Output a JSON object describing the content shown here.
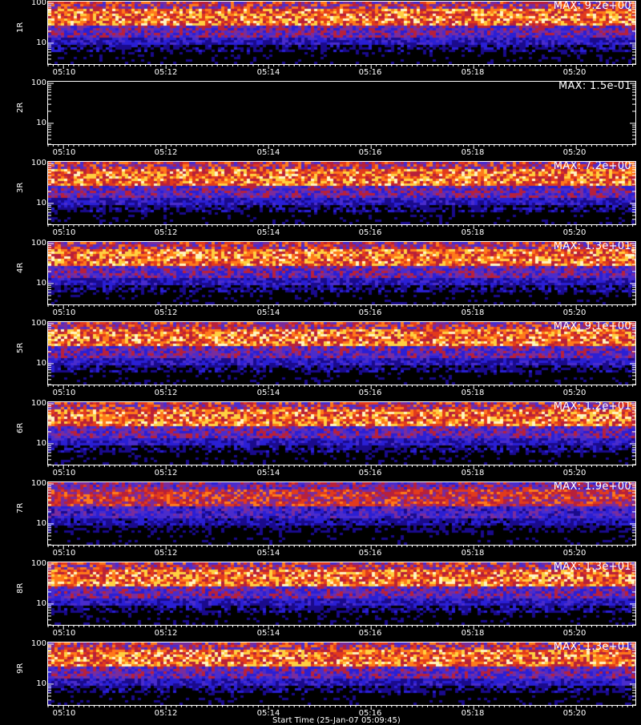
{
  "chart_data": [
    {
      "type": "heatmap",
      "panel": "1R",
      "ylabel": "1R",
      "max_label": "MAX: 9.2e+00",
      "yticks": [
        "100",
        "10"
      ],
      "xticks": [
        "05:10",
        "05:12",
        "05:14",
        "05:16",
        "05:18",
        "05:20"
      ],
      "yscale": "log",
      "ylim": [
        3,
        110
      ],
      "intensity": 1.0
    },
    {
      "type": "heatmap",
      "panel": "2R",
      "ylabel": "2R",
      "max_label": "MAX: 1.5e-01",
      "yticks": [
        "100",
        "10"
      ],
      "xticks": [
        "05:10",
        "05:12",
        "05:14",
        "05:16",
        "05:18",
        "05:20"
      ],
      "yscale": "log",
      "ylim": [
        3,
        110
      ],
      "intensity": 0.0
    },
    {
      "type": "heatmap",
      "panel": "3R",
      "ylabel": "3R",
      "max_label": "MAX: 7.2e+00",
      "yticks": [
        "100",
        "10"
      ],
      "xticks": [
        "05:10",
        "05:12",
        "05:14",
        "05:16",
        "05:18",
        "05:20"
      ],
      "yscale": "log",
      "ylim": [
        3,
        110
      ],
      "intensity": 1.0
    },
    {
      "type": "heatmap",
      "panel": "4R",
      "ylabel": "4R",
      "max_label": "MAX: 1.3e+01",
      "yticks": [
        "100",
        "10"
      ],
      "xticks": [
        "05:10",
        "05:12",
        "05:14",
        "05:16",
        "05:18",
        "05:20"
      ],
      "yscale": "log",
      "ylim": [
        3,
        110
      ],
      "intensity": 1.0
    },
    {
      "type": "heatmap",
      "panel": "5R",
      "ylabel": "5R",
      "max_label": "MAX: 9.1e+00",
      "yticks": [
        "100",
        "10"
      ],
      "xticks": [
        "05:10",
        "05:12",
        "05:14",
        "05:16",
        "05:18",
        "05:20"
      ],
      "yscale": "log",
      "ylim": [
        3,
        110
      ],
      "intensity": 1.0
    },
    {
      "type": "heatmap",
      "panel": "6R",
      "ylabel": "6R",
      "max_label": "MAX: 1.2e+01",
      "yticks": [
        "100",
        "10"
      ],
      "xticks": [
        "05:10",
        "05:12",
        "05:14",
        "05:16",
        "05:18",
        "05:20"
      ],
      "yscale": "log",
      "ylim": [
        3,
        110
      ],
      "intensity": 1.0
    },
    {
      "type": "heatmap",
      "panel": "7R",
      "ylabel": "7R",
      "max_label": "MAX: 1.9e+00",
      "yticks": [
        "100",
        "10"
      ],
      "xticks": [
        "05:10",
        "05:12",
        "05:14",
        "05:16",
        "05:18",
        "05:20"
      ],
      "yscale": "log",
      "ylim": [
        3,
        110
      ],
      "intensity": 0.8
    },
    {
      "type": "heatmap",
      "panel": "8R",
      "ylabel": "8R",
      "max_label": "MAX: 1.3e+01",
      "yticks": [
        "100",
        "10"
      ],
      "xticks": [
        "05:10",
        "05:12",
        "05:14",
        "05:16",
        "05:18",
        "05:20"
      ],
      "yscale": "log",
      "ylim": [
        3,
        110
      ],
      "intensity": 1.0
    },
    {
      "type": "heatmap",
      "panel": "9R",
      "ylabel": "9R",
      "max_label": "MAX: 1.3e+01",
      "yticks": [
        "100",
        "10"
      ],
      "xticks": [
        "05:10",
        "05:12",
        "05:14",
        "05:16",
        "05:18",
        "05:20"
      ],
      "yscale": "log",
      "ylim": [
        3,
        110
      ],
      "intensity": 1.0
    }
  ],
  "footer": {
    "start_time": "Start Time (25-Jan-07 05:09:45)"
  },
  "colormap": [
    "#000000",
    "#1a0a8c",
    "#2a1fd4",
    "#4a2ccc",
    "#7a2c9c",
    "#b8203a",
    "#e23a1c",
    "#ff7a1a",
    "#ffd040",
    "#fff5c0"
  ]
}
